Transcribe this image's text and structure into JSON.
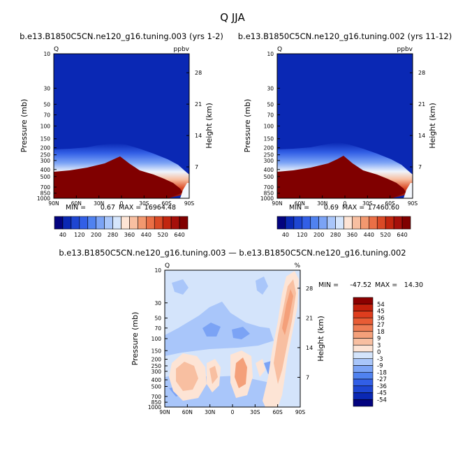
{
  "figure_title": "Q  JJA",
  "colors": {
    "top_scale": [
      "#03037f",
      "#0a28b4",
      "#1e46d2",
      "#325fe6",
      "#5082f0",
      "#7ba3f5",
      "#a9c6fa",
      "#d6e6fc",
      "#fde4d5",
      "#f8bfa1",
      "#f2986f",
      "#ea6f46",
      "#da4a26",
      "#c2260f",
      "#a50f0a",
      "#800000"
    ],
    "diff_scale": [
      "#03037f",
      "#0a28b4",
      "#1e46d2",
      "#325fe6",
      "#5082f0",
      "#7ba3f5",
      "#a9c6fa",
      "#d4e4fb",
      "#fde4d5",
      "#f8bfa1",
      "#f4a07a",
      "#ee7d55",
      "#e85c35",
      "#de3d1e",
      "#c21f0b",
      "#8b0000"
    ]
  },
  "chart_data": [
    {
      "type": "heatmap",
      "title": "b.e13.B1850C5CN.ne120_g16.tuning.003 (yrs 1-2)",
      "left_string": "Q",
      "right_string": "ppbv",
      "x_ticks": [
        "90N",
        "60N",
        "30N",
        "0",
        "30S",
        "60S",
        "90S"
      ],
      "y_ticks": [
        "10",
        "30",
        "50",
        "70",
        "100",
        "150",
        "200",
        "250",
        "300",
        "400",
        "500",
        "700",
        "850",
        "1000"
      ],
      "ylabel": "Pressure (mb)",
      "y2label": "Height (km)",
      "y2_ticks": [
        "28",
        "21",
        "14",
        "7"
      ],
      "min_label": "MIN =",
      "min_value": "0.67",
      "max_label": "MAX =",
      "max_value": "16964.48",
      "colorbar_labels": [
        "40",
        "120",
        "200",
        "280",
        "360",
        "440",
        "520",
        "640"
      ]
    },
    {
      "type": "heatmap",
      "title": "b.e13.B1850C5CN.ne120_g16.tuning.002 (yrs 11-12)",
      "left_string": "Q",
      "right_string": "ppbv",
      "x_ticks": [
        "90N",
        "60N",
        "30N",
        "0",
        "30S",
        "60S",
        "90S"
      ],
      "y_ticks": [
        "10",
        "30",
        "50",
        "70",
        "100",
        "150",
        "200",
        "250",
        "300",
        "400",
        "500",
        "700",
        "850",
        "1000"
      ],
      "ylabel": "Pressure (mb)",
      "y2label": "Height (km)",
      "y2_ticks": [
        "28",
        "21",
        "14",
        "7"
      ],
      "min_label": "MIN =",
      "min_value": "0.69",
      "max_label": "MAX =",
      "max_value": "17460.60",
      "colorbar_labels": [
        "40",
        "120",
        "200",
        "280",
        "360",
        "440",
        "520",
        "640"
      ]
    },
    {
      "type": "heatmap",
      "title": "b.e13.B1850C5CN.ne120_g16.tuning.003 — b.e13.B1850C5CN.ne120_g16.tuning.002",
      "left_string": "Q",
      "right_string": "%",
      "x_ticks": [
        "90N",
        "60N",
        "30N",
        "0",
        "30S",
        "60S",
        "90S"
      ],
      "y_ticks": [
        "10",
        "30",
        "50",
        "70",
        "100",
        "150",
        "200",
        "250",
        "300",
        "400",
        "500",
        "700",
        "850",
        "1000"
      ],
      "ylabel": "Pressure (mb)",
      "y2label": "Height (km)",
      "y2_ticks": [
        "28",
        "21",
        "14",
        "7"
      ],
      "min_label": "MIN =",
      "min_value": "-47.52",
      "max_label": "MAX =",
      "max_value": "14.30",
      "colorbar_labels": [
        "54",
        "45",
        "36",
        "27",
        "18",
        "9",
        "3",
        "0",
        "-3",
        "-9",
        "-18",
        "-27",
        "-36",
        "-45",
        "-54"
      ]
    }
  ]
}
